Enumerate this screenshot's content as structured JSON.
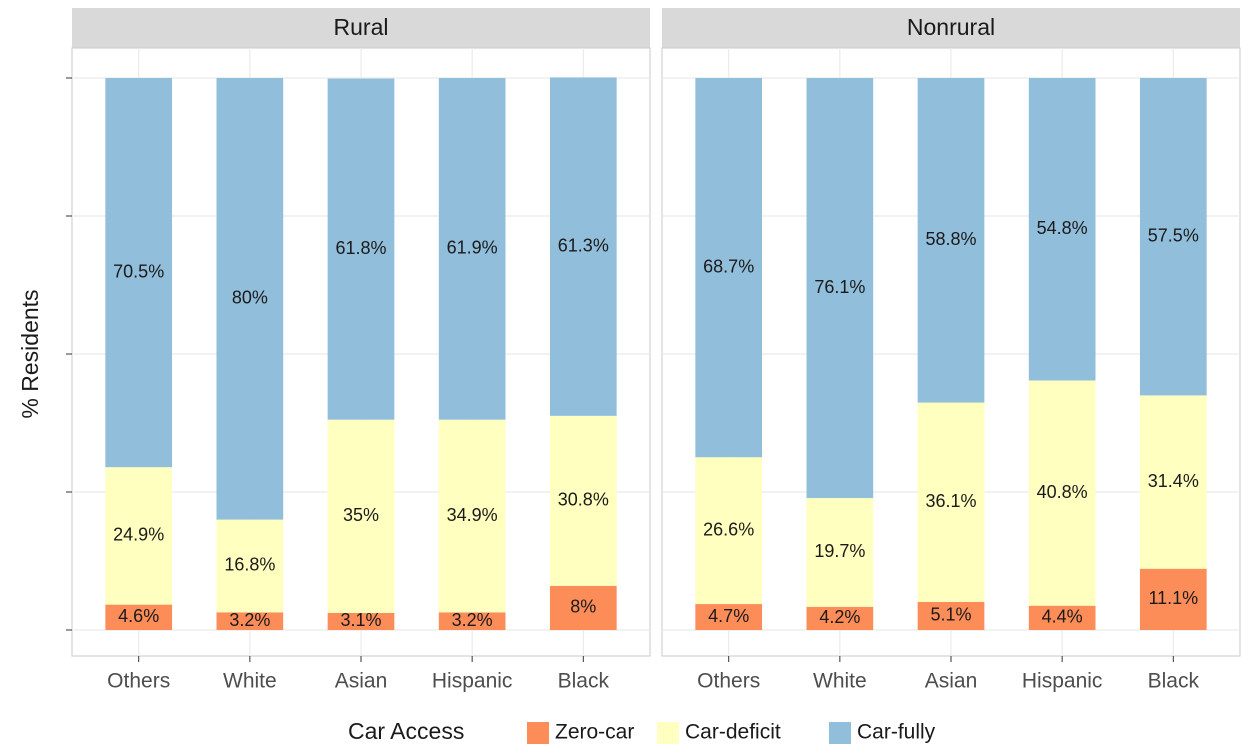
{
  "chart_data": {
    "type": "bar",
    "stacked": true,
    "ylabel": "% Residents",
    "ylim": [
      0,
      100
    ],
    "yticks": [
      0,
      25,
      50,
      75,
      100
    ],
    "grid": true,
    "categories": [
      "Others",
      "White",
      "Asian",
      "Hispanic",
      "Black"
    ],
    "legend_title": "Car Access",
    "legend": [
      {
        "name": "Zero-car",
        "color": "#fc8d59"
      },
      {
        "name": "Car-deficit",
        "color": "#ffffbf"
      },
      {
        "name": "Car-fully",
        "color": "#91bfdb"
      }
    ],
    "panels": [
      {
        "title": "Rural",
        "series": [
          {
            "values": [
              4.6,
              3.2,
              3.1,
              3.2,
              8
            ],
            "value_labels": [
              "4.6%",
              "3.2%",
              "3.1%",
              "3.2%",
              "8%"
            ]
          },
          {
            "values": [
              24.9,
              16.8,
              35,
              34.9,
              30.8
            ],
            "value_labels": [
              "24.9%",
              "16.8%",
              "35%",
              "34.9%",
              "30.8%"
            ]
          },
          {
            "values": [
              70.5,
              80,
              61.8,
              61.9,
              61.3
            ],
            "value_labels": [
              "70.5%",
              "80%",
              "61.8%",
              "61.9%",
              "61.3%"
            ]
          }
        ]
      },
      {
        "title": "Nonrural",
        "series": [
          {
            "values": [
              4.7,
              4.2,
              5.1,
              4.4,
              11.1
            ],
            "value_labels": [
              "4.7%",
              "4.2%",
              "5.1%",
              "4.4%",
              "11.1%"
            ]
          },
          {
            "values": [
              26.6,
              19.7,
              36.1,
              40.8,
              31.4
            ],
            "value_labels": [
              "26.6%",
              "19.7%",
              "36.1%",
              "40.8%",
              "31.4%"
            ]
          },
          {
            "values": [
              68.7,
              76.1,
              58.8,
              54.8,
              57.5
            ],
            "value_labels": [
              "68.7%",
              "76.1%",
              "58.8%",
              "54.8%",
              "57.5%"
            ]
          }
        ]
      }
    ]
  }
}
